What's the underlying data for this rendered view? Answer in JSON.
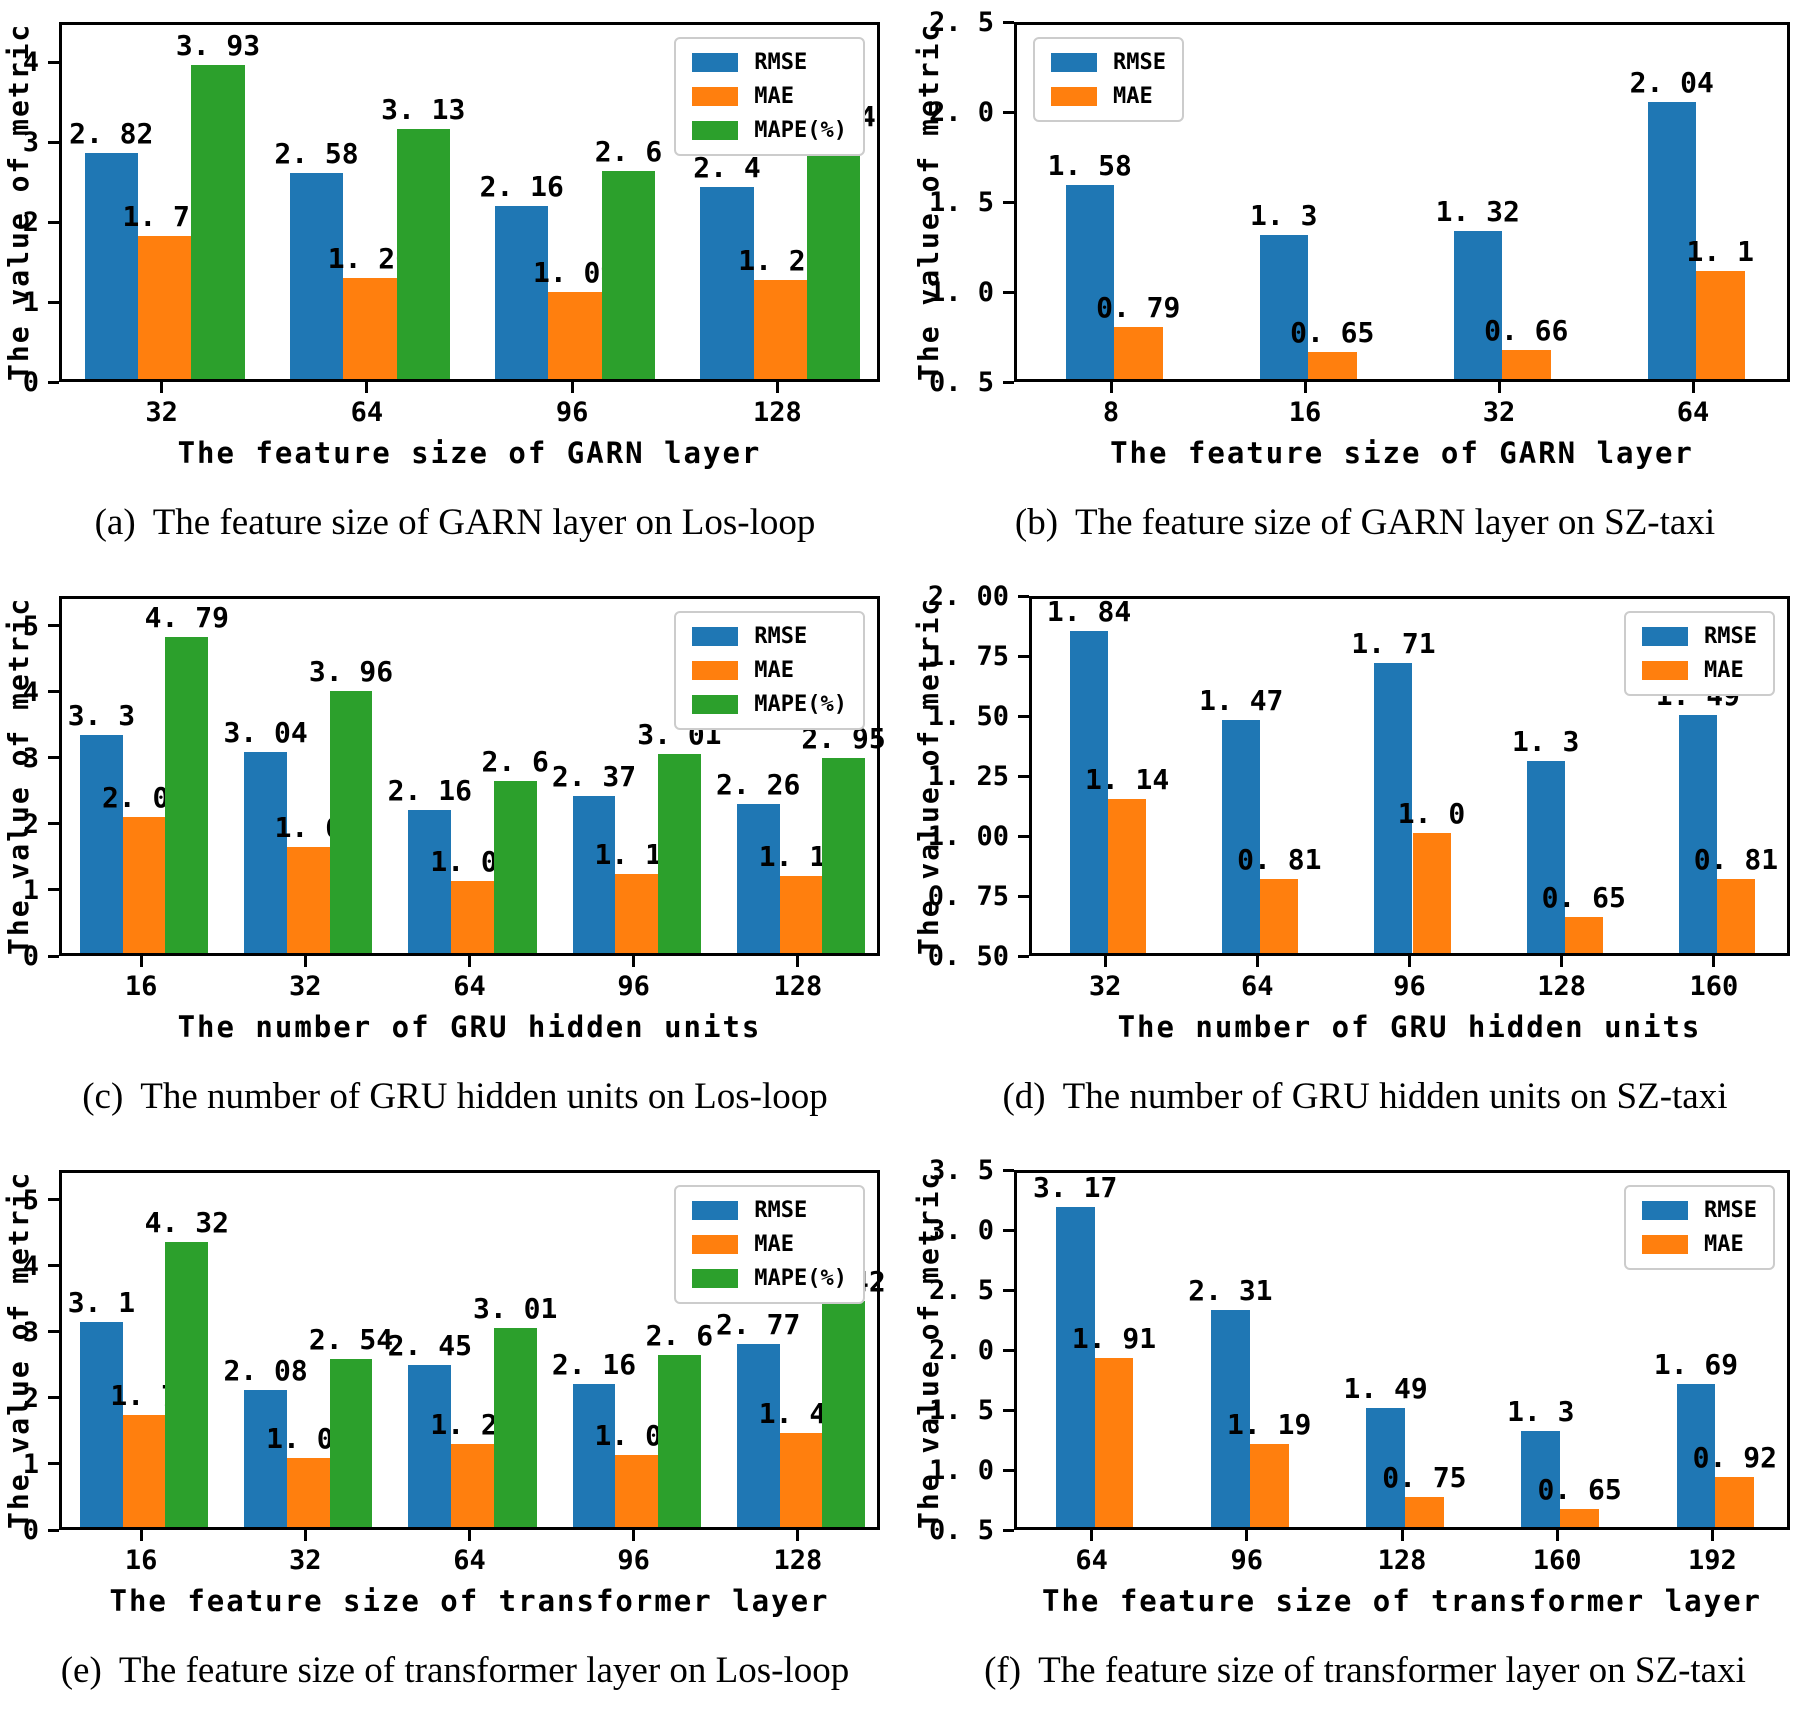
{
  "figure": {
    "background": "#ffffff"
  },
  "colors": {
    "rmse_blue": "#1f77b4",
    "mae_orange": "#ff7f0e",
    "mape_green": "#2ca02c"
  },
  "chart_data": [
    {
      "id": "a",
      "type": "bar",
      "caption_label": "(a)",
      "caption_text": "The feature size of GARN layer on Los-loop",
      "xlabel": "The feature size of GARN layer",
      "ylabel": "The value of metric",
      "categories": [
        "32",
        "64",
        "96",
        "128"
      ],
      "series": [
        {
          "name": "RMSE",
          "color": "#1f77b4",
          "values": [
            2.82,
            2.58,
            2.16,
            2.4
          ],
          "labels": [
            "2.82",
            "2.58",
            "2.16",
            "2.4"
          ]
        },
        {
          "name": "MAE",
          "color": "#ff7f0e",
          "values": [
            1.79,
            1.26,
            1.09,
            1.24
          ],
          "labels": [
            "1.79",
            "1.26",
            "1.09",
            "1.24"
          ]
        },
        {
          "name": "MAPE(%)",
          "color": "#2ca02c",
          "values": [
            3.93,
            3.13,
            2.6,
            3.04
          ],
          "labels": [
            "3.93",
            "3.13",
            "2.6",
            "3.04"
          ]
        }
      ],
      "ylim": [
        0,
        4.5
      ],
      "yticks": [
        "0",
        "1",
        "2",
        "3",
        "4"
      ],
      "legend_position": "top-right",
      "grid": false
    },
    {
      "id": "b",
      "type": "bar",
      "caption_label": "(b)",
      "caption_text": "The feature size of GARN layer on SZ-taxi",
      "xlabel": "The feature size of GARN layer",
      "ylabel": "The value of metric",
      "categories": [
        "8",
        "16",
        "32",
        "64"
      ],
      "series": [
        {
          "name": "RMSE",
          "color": "#1f77b4",
          "values": [
            1.58,
            1.3,
            1.32,
            2.04
          ],
          "labels": [
            "1.58",
            "1.3",
            "1.32",
            "2.04"
          ]
        },
        {
          "name": "MAE",
          "color": "#ff7f0e",
          "values": [
            0.79,
            0.65,
            0.66,
            1.1
          ],
          "labels": [
            "0.79",
            "0.65",
            "0.66",
            "1.1"
          ]
        }
      ],
      "ylim": [
        0.5,
        2.5
      ],
      "yticks": [
        "0.5",
        "1.0",
        "1.5",
        "2.0",
        "2.5"
      ],
      "legend_position": "top-left",
      "grid": false
    },
    {
      "id": "c",
      "type": "bar",
      "caption_label": "(c)",
      "caption_text": "The number of GRU hidden units on Los-loop",
      "xlabel": "The number of GRU hidden units",
      "ylabel": "The value of metric",
      "categories": [
        "16",
        "32",
        "64",
        "96",
        "128"
      ],
      "series": [
        {
          "name": "RMSE",
          "color": "#1f77b4",
          "values": [
            3.3,
            3.04,
            2.16,
            2.37,
            2.26
          ],
          "labels": [
            "3.3",
            "3.04",
            "2.16",
            "2.37",
            "2.26"
          ]
        },
        {
          "name": "MAE",
          "color": "#ff7f0e",
          "values": [
            2.06,
            1.6,
            1.09,
            1.19,
            1.17
          ],
          "labels": [
            "2.06",
            "1.6",
            "1.09",
            "1.19",
            "1.17"
          ]
        },
        {
          "name": "MAPE(%)",
          "color": "#2ca02c",
          "values": [
            4.79,
            3.96,
            2.6,
            3.01,
            2.95
          ],
          "labels": [
            "4.79",
            "3.96",
            "2.6",
            "3.01",
            "2.95"
          ]
        }
      ],
      "ylim": [
        0,
        5.45
      ],
      "yticks": [
        "0",
        "1",
        "2",
        "3",
        "4",
        "5"
      ],
      "legend_position": "top-right",
      "grid": false
    },
    {
      "id": "d",
      "type": "bar",
      "caption_label": "(d)",
      "caption_text": "The number of GRU hidden units on SZ-taxi",
      "xlabel": "The number of GRU hidden units",
      "ylabel": "The value of metric",
      "categories": [
        "32",
        "64",
        "96",
        "128",
        "160"
      ],
      "series": [
        {
          "name": "RMSE",
          "color": "#1f77b4",
          "values": [
            1.84,
            1.47,
            1.71,
            1.3,
            1.49
          ],
          "labels": [
            "1.84",
            "1.47",
            "1.71",
            "1.3",
            "1.49"
          ]
        },
        {
          "name": "MAE",
          "color": "#ff7f0e",
          "values": [
            1.14,
            0.81,
            1.0,
            0.65,
            0.81
          ],
          "labels": [
            "1.14",
            "0.81",
            "1.0",
            "0.65",
            "0.81"
          ]
        }
      ],
      "ylim": [
        0.5,
        2.0
      ],
      "yticks": [
        "0.50",
        "0.75",
        "1.00",
        "1.25",
        "1.50",
        "1.75",
        "2.00"
      ],
      "legend_position": "top-right",
      "grid": false
    },
    {
      "id": "e",
      "type": "bar",
      "caption_label": "(e)",
      "caption_text": "The feature size of transformer layer on Los-loop",
      "xlabel": "The feature size of transformer layer",
      "ylabel": "The value of metric",
      "categories": [
        "16",
        "32",
        "64",
        "96",
        "128"
      ],
      "series": [
        {
          "name": "RMSE",
          "color": "#1f77b4",
          "values": [
            3.1,
            2.08,
            2.45,
            2.16,
            2.77
          ],
          "labels": [
            "3.1",
            "2.08",
            "2.45",
            "2.16",
            "2.77"
          ]
        },
        {
          "name": "MAE",
          "color": "#ff7f0e",
          "values": [
            1.7,
            1.05,
            1.26,
            1.09,
            1.43
          ],
          "labels": [
            "1.7",
            "1.05",
            "1.26",
            "1.09",
            "1.43"
          ]
        },
        {
          "name": "MAPE(%)",
          "color": "#2ca02c",
          "values": [
            4.32,
            2.54,
            3.01,
            2.6,
            3.42
          ],
          "labels": [
            "4.32",
            "2.54",
            "3.01",
            "2.6",
            "3.42"
          ]
        }
      ],
      "ylim": [
        0,
        5.45
      ],
      "yticks": [
        "0",
        "1",
        "2",
        "3",
        "4",
        "5"
      ],
      "legend_position": "top-right",
      "grid": false
    },
    {
      "id": "f",
      "type": "bar",
      "caption_label": "(f)",
      "caption_text": "The feature size of transformer layer on SZ-taxi",
      "xlabel": "The feature size of transformer layer",
      "ylabel": "The value of metric",
      "categories": [
        "64",
        "96",
        "128",
        "160",
        "192"
      ],
      "series": [
        {
          "name": "RMSE",
          "color": "#1f77b4",
          "values": [
            3.17,
            2.31,
            1.49,
            1.3,
            1.69
          ],
          "labels": [
            "3.17",
            "2.31",
            "1.49",
            "1.3",
            "1.69"
          ]
        },
        {
          "name": "MAE",
          "color": "#ff7f0e",
          "values": [
            1.91,
            1.19,
            0.75,
            0.65,
            0.92
          ],
          "labels": [
            "1.91",
            "1.19",
            "0.75",
            "0.65",
            "0.92"
          ]
        }
      ],
      "ylim": [
        0.5,
        3.5
      ],
      "yticks": [
        "0.5",
        "1.0",
        "1.5",
        "2.0",
        "2.5",
        "3.0",
        "3.5"
      ],
      "legend_position": "top-right",
      "grid": false
    }
  ]
}
